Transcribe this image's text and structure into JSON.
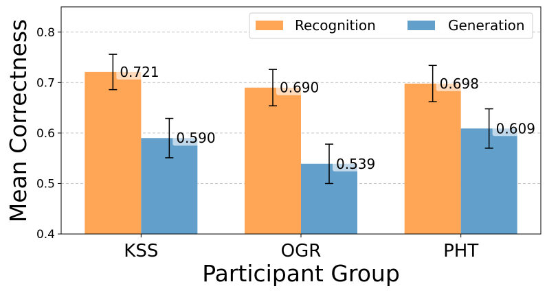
{
  "chart_data": {
    "type": "bar",
    "title": "",
    "xlabel": "Participant Group",
    "ylabel": "Mean Correctness",
    "categories": [
      "KSS",
      "OGR",
      "PHT"
    ],
    "ylim": [
      0.4,
      0.85
    ],
    "yticks": [
      "0.4",
      "0.5",
      "0.6",
      "0.7",
      "0.8"
    ],
    "grid": true,
    "legend_position": "top-right",
    "series": [
      {
        "name": "Recognition",
        "color": "#ffa556",
        "values": [
          0.721,
          0.69,
          0.698
        ],
        "labels": [
          "0.721",
          "0.690",
          "0.698"
        ],
        "error": [
          0.035,
          0.036,
          0.036
        ]
      },
      {
        "name": "Generation",
        "color": "#629fca",
        "values": [
          0.59,
          0.539,
          0.609
        ],
        "labels": [
          "0.590",
          "0.539",
          "0.609"
        ],
        "error": [
          0.039,
          0.039,
          0.039
        ]
      }
    ]
  }
}
